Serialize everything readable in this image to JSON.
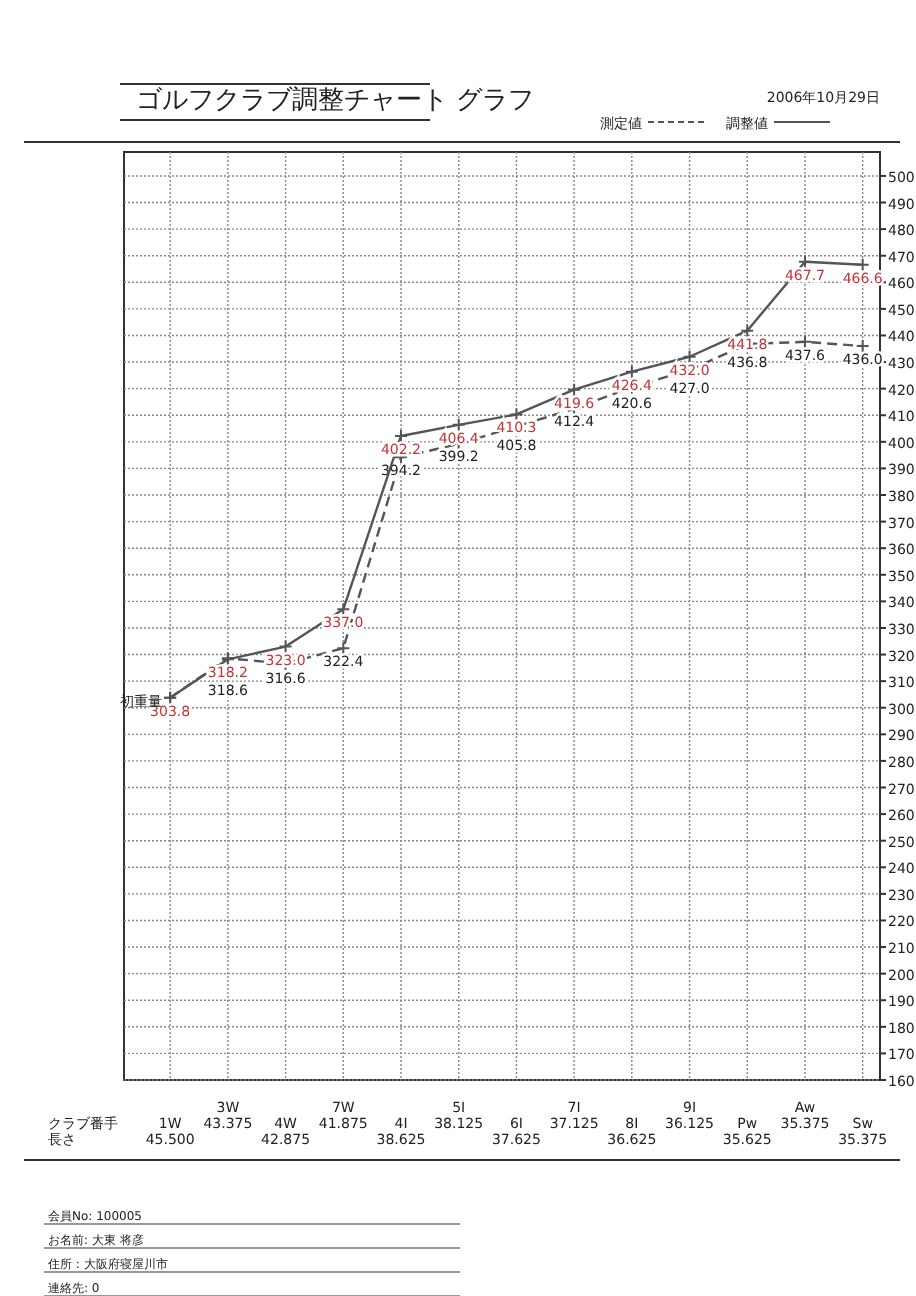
{
  "chart_data": {
    "type": "line",
    "title": "ゴルフクラブ調整チャート グラフ",
    "subtitle": "2006年10月29日",
    "categories": [
      "1W\n45.500",
      "3W\n43.375",
      "4W\n42.875",
      "7W\n41.875",
      "4I\n38.625",
      "5I\n38.125",
      "6I\n37.625",
      "7I\n37.125",
      "8I\n36.625",
      "9I\n36.125",
      "Pw\n35.625",
      "Aw\n35.375",
      "Sw\n35.375"
    ],
    "series": [
      {
        "name": "測定値",
        "color": "#555555",
        "line_style": "dashed",
        "values": [
          303.8,
          318.6,
          316.6,
          322.4,
          394.2,
          399.2,
          405.8,
          412.4,
          420.6,
          427.0,
          436.8,
          437.6,
          436.0
        ],
        "value_labels": [
          null,
          "318.6",
          "316.6",
          "322.4",
          "394.2",
          "399.2",
          "405.8",
          "412.4",
          "420.6",
          "427.0",
          "436.8",
          "437.6",
          "436.0"
        ]
      },
      {
        "name": "調整値",
        "color": "#555555",
        "line_style": "solid",
        "values": [
          303.8,
          318.2,
          323.0,
          337.0,
          402.2,
          406.4,
          410.3,
          419.6,
          426.4,
          432.0,
          441.8,
          467.7,
          466.6
        ],
        "value_labels": [
          "303.8",
          "318.2",
          "323.0",
          "337.0",
          "402.2",
          "406.4",
          "410.3",
          "419.6",
          "426.4",
          "432.0",
          "441.8",
          "467.7",
          "466.6"
        ]
      }
    ],
    "marker": "cross",
    "ylim": [
      160,
      509
    ],
    "yticks": [
      160,
      170,
      180,
      190,
      200,
      210,
      220,
      230,
      240,
      250,
      260,
      270,
      280,
      290,
      300,
      310,
      320,
      330,
      340,
      350,
      360,
      370,
      380,
      390,
      400,
      410,
      420,
      430,
      440,
      450,
      460,
      470,
      480,
      490,
      500
    ],
    "grid": true,
    "legend": "top right",
    "annotations": [
      {
        "text": "初重量",
        "x": "1W\n45.500",
        "y": 303.8
      },
      "クラブ番手",
      "長さ",
      "会員No: 100005",
      "お名前: 大東 将彦",
      "住所 : 大阪府寝屋川市",
      "連絡先: 0"
    ]
  }
}
